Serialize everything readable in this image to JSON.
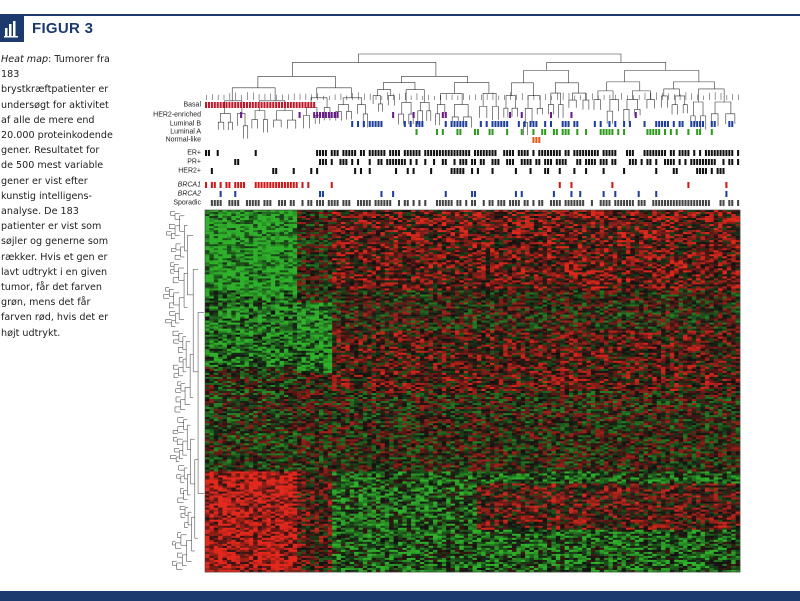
{
  "header": {
    "figure_label": "FIGUR 3",
    "icon": "bar-chart-icon"
  },
  "caption": {
    "lead": "Heat map",
    "text": ": Tumorer fra 183 brystkræftpatienter er undersøgt for aktivitet af alle de mere end 20.000 proteinkodende gener. Resultatet for de 500 mest variable gener er vist efter kunstig intelligens-analyse. De 183 patienter er vist som søjler og generne som rækker. Hvis et gen er lavt udtrykt i en given tumor, får det farven grøn, mens det får farven rød, hvis det er højt udtrykt."
  },
  "annotation_rows": [
    {
      "label": "Basal",
      "italic": false,
      "color": "#c0182a"
    },
    {
      "label": "HER2-enriched",
      "italic": false,
      "color": "#6a1b8a"
    },
    {
      "label": "Luminal B",
      "italic": false,
      "color": "#1f3f9a"
    },
    {
      "label": "Luminal A",
      "italic": false,
      "color": "#2f9a1f"
    },
    {
      "label": "Normal-like",
      "italic": false,
      "color": "#e05a1a"
    },
    {
      "label": "ER+",
      "italic": false,
      "color": "#111111"
    },
    {
      "label": "PR+",
      "italic": false,
      "color": "#111111"
    },
    {
      "label": "HER2+",
      "italic": false,
      "color": "#111111"
    },
    {
      "label": "BRCA1",
      "italic": true,
      "color": "#d01818"
    },
    {
      "label": "BRCA2",
      "italic": true,
      "color": "#1f3f9a"
    },
    {
      "label": "Sporadic",
      "italic": false,
      "color": "#444444"
    }
  ],
  "heatmap": {
    "samples": 183,
    "genes": 500,
    "low_color": "#2fb02a",
    "mid_color": "#111111",
    "high_color": "#e2281c",
    "low_meaning": "lavt udtrykt",
    "high_meaning": "højt udtrykt"
  }
}
